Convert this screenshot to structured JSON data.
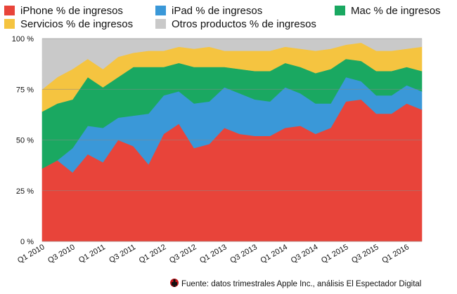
{
  "chart_data": {
    "type": "area",
    "stacked": true,
    "percent": true,
    "ylim": [
      0,
      100
    ],
    "yticks": [
      "0 %",
      "25 %",
      "50 %",
      "75 %",
      "100 %"
    ],
    "categories": [
      "Q1 2010",
      "Q2 2010",
      "Q3 2010",
      "Q4 2010",
      "Q1 2011",
      "Q2 2011",
      "Q3 2011",
      "Q4 2011",
      "Q1 2012",
      "Q2 2012",
      "Q3 2012",
      "Q4 2012",
      "Q1 2013",
      "Q2 2013",
      "Q3 2013",
      "Q4 2013",
      "Q1 2014",
      "Q2 2014",
      "Q3 2014",
      "Q4 2014",
      "Q1 2015",
      "Q2 2015",
      "Q3 2015",
      "Q4 2015",
      "Q1 2016",
      "Q2 2016"
    ],
    "xtick_labels": [
      "Q1 2010",
      "Q3 2010",
      "Q1 2011",
      "Q3 2011",
      "Q1 2012",
      "Q3 2012",
      "Q1 2013",
      "Q3 2013",
      "Q1 2014",
      "Q3 2014",
      "Q1 2015",
      "Q3 2015",
      "Q1 2016"
    ],
    "series": [
      {
        "name": "iPhone % de ingresos",
        "color": "#e8443a",
        "values": [
          36,
          40,
          34,
          43,
          39,
          50,
          47,
          38,
          53,
          58,
          46,
          48,
          56,
          53,
          52,
          52,
          56,
          57,
          53,
          56,
          69,
          70,
          63,
          63,
          68,
          65
        ]
      },
      {
        "name": "iPad % de ingresos",
        "color": "#3a98d8",
        "values": [
          0,
          0,
          12,
          14,
          17,
          11,
          15,
          25,
          19,
          16,
          22,
          21,
          20,
          20,
          18,
          17,
          20,
          16,
          15,
          12,
          12,
          9,
          9,
          9,
          9,
          9
        ]
      },
      {
        "name": "Mac % de ingresos",
        "color": "#1aa861",
        "values": [
          28,
          28,
          24,
          24,
          20,
          20,
          24,
          23,
          14,
          14,
          18,
          17,
          10,
          12,
          14,
          15,
          12,
          13,
          15,
          17,
          9,
          10,
          12,
          12,
          9,
          10
        ]
      },
      {
        "name": "Servicios % de ingresos",
        "color": "#f5c440",
        "values": [
          11,
          13,
          15,
          9,
          9,
          10,
          7,
          8,
          8,
          8,
          9,
          10,
          8,
          9,
          10,
          10,
          8,
          9,
          11,
          10,
          7,
          9,
          10,
          10,
          9,
          12
        ]
      },
      {
        "name": "Otros productos % de ingresos",
        "color": "#c9c9c9",
        "values": [
          25,
          19,
          15,
          10,
          15,
          9,
          7,
          6,
          6,
          4,
          5,
          4,
          6,
          6,
          6,
          6,
          4,
          5,
          6,
          5,
          3,
          2,
          6,
          6,
          5,
          4
        ]
      }
    ],
    "source": "Fuente: datos trimestrales Apple Inc., análisis El Espectador Digital",
    "title": ""
  }
}
